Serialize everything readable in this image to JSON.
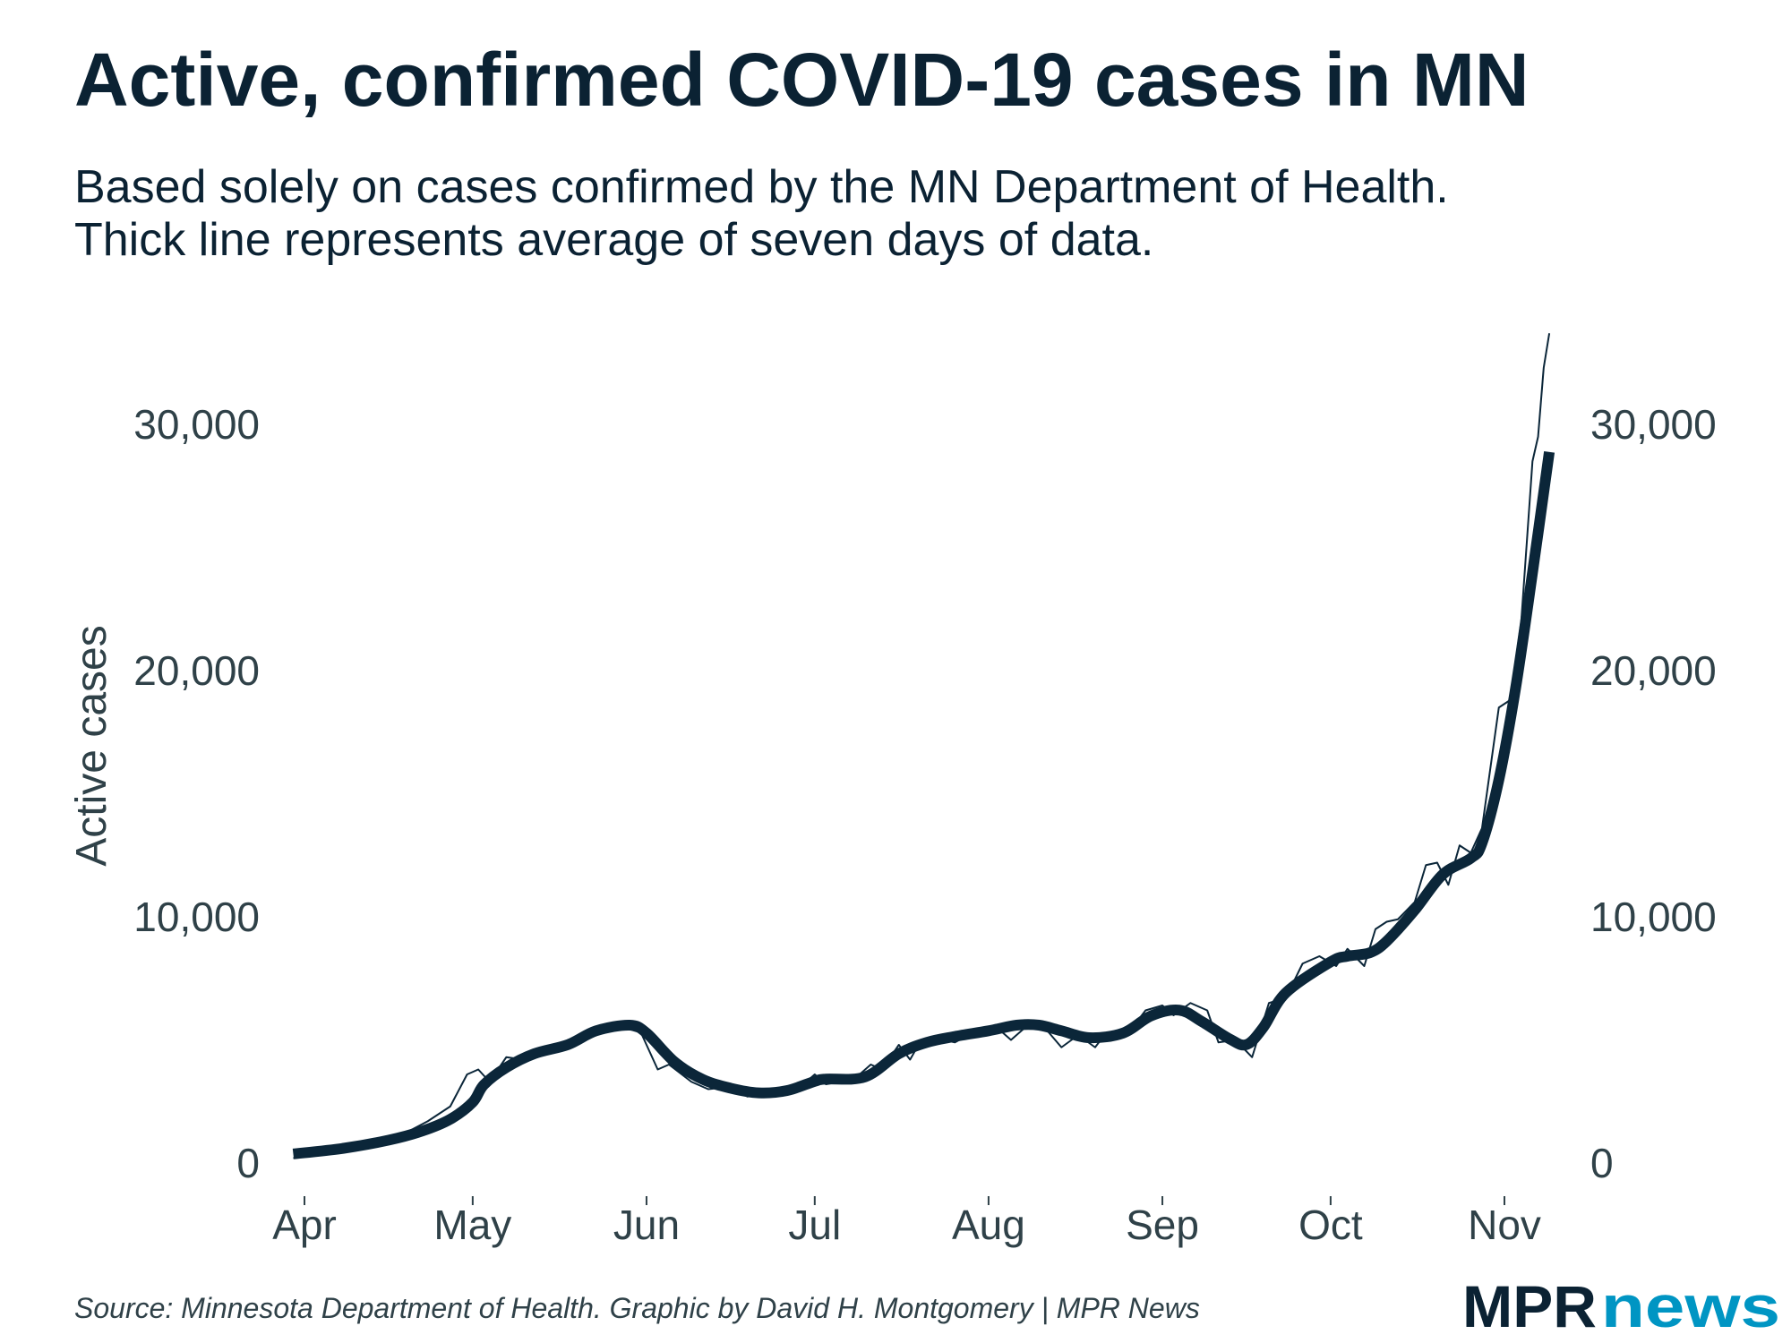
{
  "chart_data": {
    "type": "line",
    "title": "Active, confirmed COVID-19 cases in MN",
    "subtitle": [
      "Based solely on cases confirmed by the MN Department of Health.",
      "Thick line represents average of seven days of data."
    ],
    "ylabel": "Active cases",
    "xlabel": "",
    "ylim": [
      0,
      34000
    ],
    "y_ticks": [
      {
        "value": 0,
        "label": "0"
      },
      {
        "value": 10000,
        "label": "10,000"
      },
      {
        "value": 20000,
        "label": "20,000"
      },
      {
        "value": 30000,
        "label": "30,000"
      }
    ],
    "x_unit": "days since Apr 1",
    "x_ticks": [
      {
        "day": 0,
        "label": "Apr"
      },
      {
        "day": 30,
        "label": "May"
      },
      {
        "day": 61,
        "label": "Jun"
      },
      {
        "day": 91,
        "label": "Jul"
      },
      {
        "day": 122,
        "label": "Aug"
      },
      {
        "day": 153,
        "label": "Sep"
      },
      {
        "day": 183,
        "label": "Oct"
      },
      {
        "day": 214,
        "label": "Nov"
      }
    ],
    "grid": false,
    "series": [
      {
        "name": "Daily active cases",
        "style": "thin",
        "x": [
          -2,
          3,
          10,
          17,
          22,
          26,
          29,
          31,
          33,
          36,
          39,
          44,
          48,
          51,
          54,
          57,
          60,
          63,
          65,
          69,
          72,
          76,
          79,
          84,
          88,
          91,
          93,
          98,
          101,
          103,
          106,
          108,
          110,
          114,
          116,
          120,
          124,
          126,
          129,
          132,
          135,
          138,
          141,
          143,
          147,
          150,
          153,
          155,
          158,
          161,
          163,
          166,
          169,
          172,
          175,
          178,
          181,
          184,
          186,
          189,
          191,
          193,
          195,
          198,
          200,
          202,
          204,
          206,
          208,
          210,
          213,
          215,
          217,
          219,
          220,
          221,
          222
        ],
        "values": [
          200,
          350,
          700,
          1100,
          1700,
          2300,
          3600,
          3800,
          3300,
          4300,
          4200,
          4600,
          4900,
          5200,
          5500,
          5500,
          5300,
          3800,
          4000,
          3300,
          3000,
          3100,
          2700,
          2900,
          3000,
          3600,
          3200,
          3400,
          4000,
          3800,
          4800,
          4200,
          5000,
          5000,
          4900,
          5400,
          5400,
          5000,
          5600,
          5500,
          4700,
          5200,
          4700,
          5300,
          5300,
          6200,
          6400,
          6000,
          6500,
          6200,
          4900,
          5000,
          4300,
          6500,
          6700,
          8100,
          8400,
          8000,
          8700,
          8000,
          9500,
          9800,
          9900,
          10600,
          12100,
          12200,
          11300,
          12900,
          12600,
          13600,
          18500,
          18800,
          22000,
          28500,
          29500,
          32300,
          33700
        ]
      },
      {
        "name": "7-day average",
        "style": "thick",
        "x": [
          -2,
          7,
          15,
          21,
          26,
          30,
          32,
          36,
          41,
          47,
          52,
          58,
          61,
          66,
          71,
          76,
          81,
          86,
          91,
          93,
          100,
          106,
          111,
          116,
          122,
          127,
          131,
          135,
          140,
          146,
          151,
          156,
          160,
          165,
          168,
          171,
          175,
          183,
          186,
          190,
          193,
          198,
          203,
          208,
          210,
          213,
          216,
          219,
          222
        ],
        "values": [
          370,
          600,
          930,
          1300,
          1780,
          2470,
          3180,
          3880,
          4440,
          4810,
          5370,
          5600,
          5280,
          4110,
          3400,
          3040,
          2850,
          2940,
          3320,
          3410,
          3500,
          4440,
          4900,
          5140,
          5370,
          5600,
          5600,
          5370,
          5090,
          5280,
          5980,
          6210,
          5750,
          5040,
          4810,
          5510,
          6910,
          8170,
          8400,
          8540,
          9010,
          10270,
          11720,
          12380,
          12990,
          15560,
          19300,
          23970,
          28880
        ]
      }
    ],
    "colors": {
      "line": "#0b2639",
      "text": "#0b2233",
      "axis": "#2f4148",
      "brand_accent": "#0095c3"
    }
  },
  "footer": {
    "source": "Source: Minnesota Department of Health. Graphic by David H. Montgomery | MPR News",
    "logo_mpr": "MPR",
    "logo_news": "news"
  }
}
